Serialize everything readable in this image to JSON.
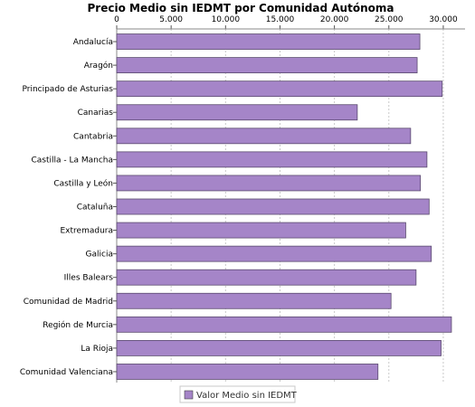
{
  "chart_data": {
    "type": "bar",
    "orientation": "horizontal",
    "title": "Precio Medio sin IEDMT por Comunidad Autónoma",
    "categories": [
      "Andalucía",
      "Aragón",
      "Principado de Asturias",
      "Canarias",
      "Cantabria",
      "Castilla - La Mancha",
      "Castilla y León",
      "Cataluña",
      "Extremadura",
      "Galicia",
      "Illes Balears",
      "Comunidad de Madrid",
      "Región de Murcia",
      "La Rioja",
      "Comunidad Valenciana"
    ],
    "series": [
      {
        "name": "Valor Medio sin IEDMT",
        "color": "#a585c8",
        "values": [
          27850,
          27600,
          29900,
          22100,
          27000,
          28500,
          27900,
          28700,
          26550,
          28900,
          27500,
          25200,
          30750,
          29800,
          24000
        ]
      }
    ],
    "xlim": [
      0,
      32000
    ],
    "ticks": [
      0,
      5000,
      10000,
      15000,
      20000,
      25000,
      30000
    ],
    "tick_labels": [
      "0",
      "5.000",
      "10.000",
      "15.000",
      "20.000",
      "25.000",
      "30.000"
    ],
    "xaxis_position": "top",
    "grid": true,
    "legend": "bottom"
  }
}
